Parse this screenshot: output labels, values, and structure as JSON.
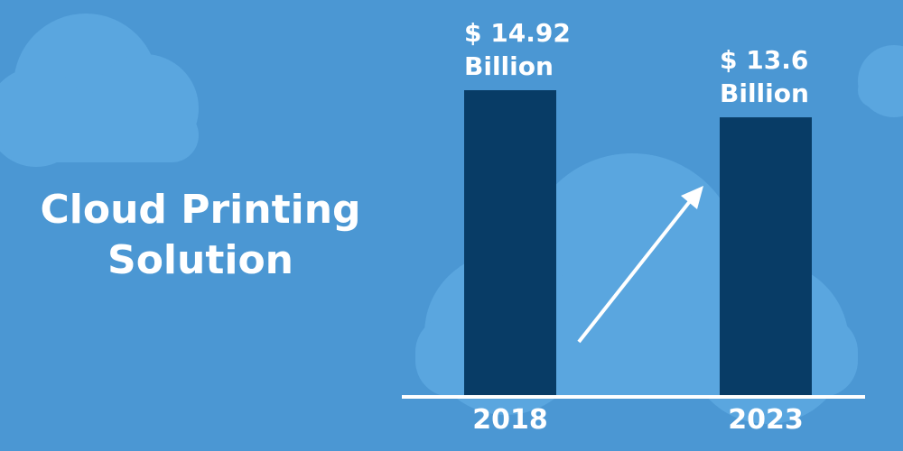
{
  "chart_data": {
    "type": "bar",
    "title": "Cloud Printing Solution",
    "categories": [
      "2018",
      "2023"
    ],
    "values": [
      14.92,
      13.6
    ],
    "value_labels": [
      "$ 14.92 Billion",
      "$ 13.6 Billion"
    ],
    "color": "#083c66"
  }
}
